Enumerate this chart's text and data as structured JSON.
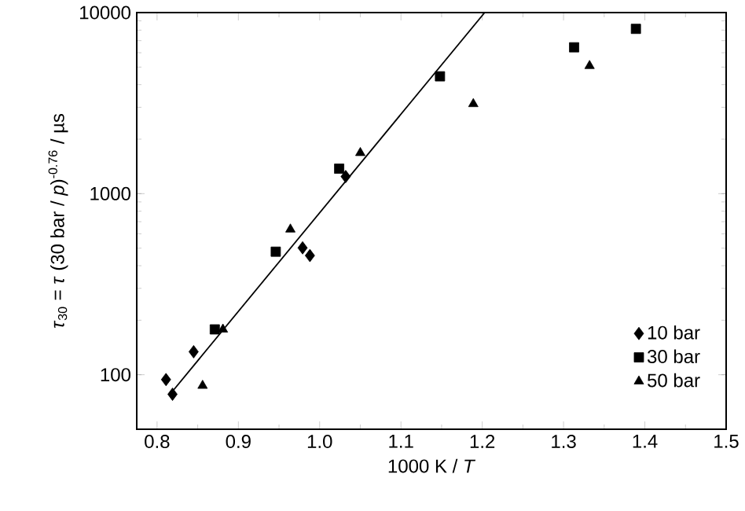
{
  "chart_data": {
    "type": "scatter",
    "xlabel": "1000 K / *T*",
    "ylabel": "*τ*$_{30}$ = *τ* (30 bar / *p*)$^{-0.76}$ / µs",
    "log": "y",
    "xlim": [
      0.775,
      1.5
    ],
    "ylim": [
      50,
      10000
    ],
    "xticks": [
      {
        "value": 0.8,
        "label": "0.8"
      },
      {
        "value": 0.9,
        "label": "0.9"
      },
      {
        "value": 1.0,
        "label": "1.0"
      },
      {
        "value": 1.1,
        "label": "1.1"
      },
      {
        "value": 1.2,
        "label": "1.2"
      },
      {
        "value": 1.3,
        "label": "1.3"
      },
      {
        "value": 1.4,
        "label": "1.4"
      },
      {
        "value": 1.5,
        "label": "1.5"
      }
    ],
    "yticks": [
      100,
      1000,
      10000
    ],
    "grid": false,
    "legend": "bottom right",
    "series": [
      {
        "name": "10 bar",
        "color": "#000000",
        "marker": "diamond",
        "x": [
          0.811,
          0.819,
          0.845,
          0.979,
          0.988,
          1.032
        ],
        "values": [
          94,
          78,
          134,
          502,
          455,
          1243
        ]
      },
      {
        "name": "30 bar",
        "color": "#000000",
        "marker": "square",
        "x": [
          0.871,
          0.946,
          1.024,
          1.148,
          1.313,
          1.389
        ],
        "values": [
          178,
          478,
          1374,
          4446,
          6430,
          8130
        ]
      },
      {
        "name": "50 bar",
        "color": "#000000",
        "marker": "triangle",
        "x": [
          0.856,
          0.881,
          0.964,
          1.05,
          1.189,
          1.332
        ],
        "values": [
          87,
          178,
          635,
          1680,
          3130,
          5080
        ]
      },
      {
        "type": "line",
        "color": "#000000",
        "marker": "none",
        "line_style": "solid",
        "x": [
          0.818,
          1.203
        ],
        "values": [
          80,
          10000
        ]
      }
    ]
  }
}
